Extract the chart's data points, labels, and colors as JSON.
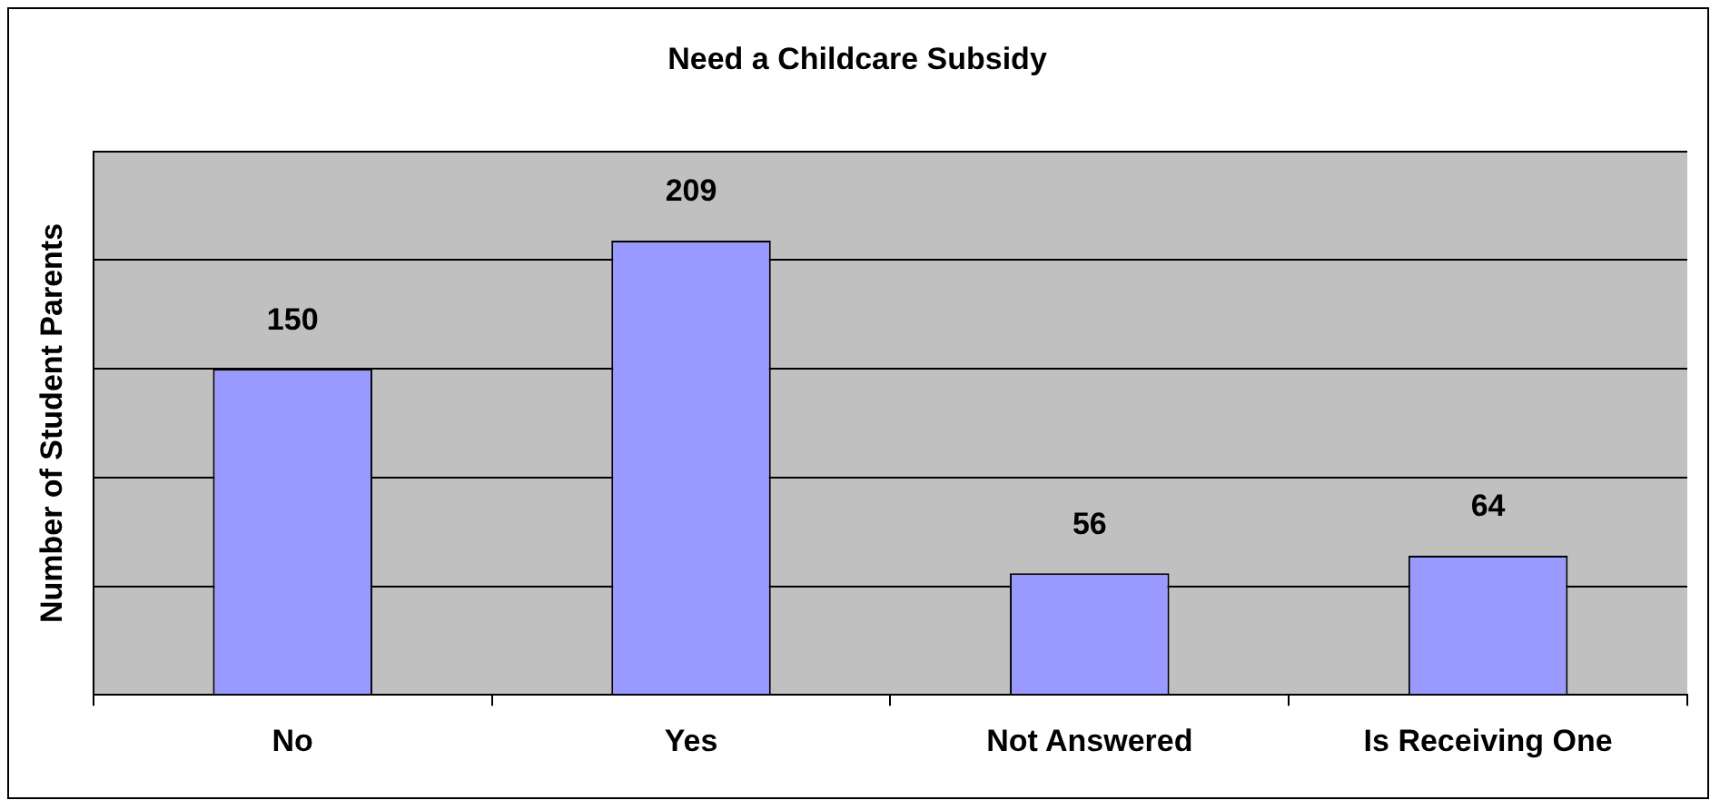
{
  "chart_data": {
    "type": "bar",
    "title": "Need a Childcare Subsidy",
    "ylabel": "Number of Student Parents",
    "categories": [
      "No",
      "Yes",
      "Not Answered",
      "Is Receiving One"
    ],
    "values": [
      150,
      209,
      56,
      64
    ],
    "color": "#9999ff",
    "ylim": [
      0,
      250
    ],
    "yticks": [
      {
        "value": 0,
        "label": null
      },
      {
        "value": 50,
        "label": null
      },
      {
        "value": 100,
        "label": null
      },
      {
        "value": 150,
        "label": null
      },
      {
        "value": 200,
        "label": null
      },
      {
        "value": 250,
        "label": null
      }
    ],
    "tick_labels": "x",
    "grid": "y",
    "legend": false,
    "data_labels": true
  }
}
